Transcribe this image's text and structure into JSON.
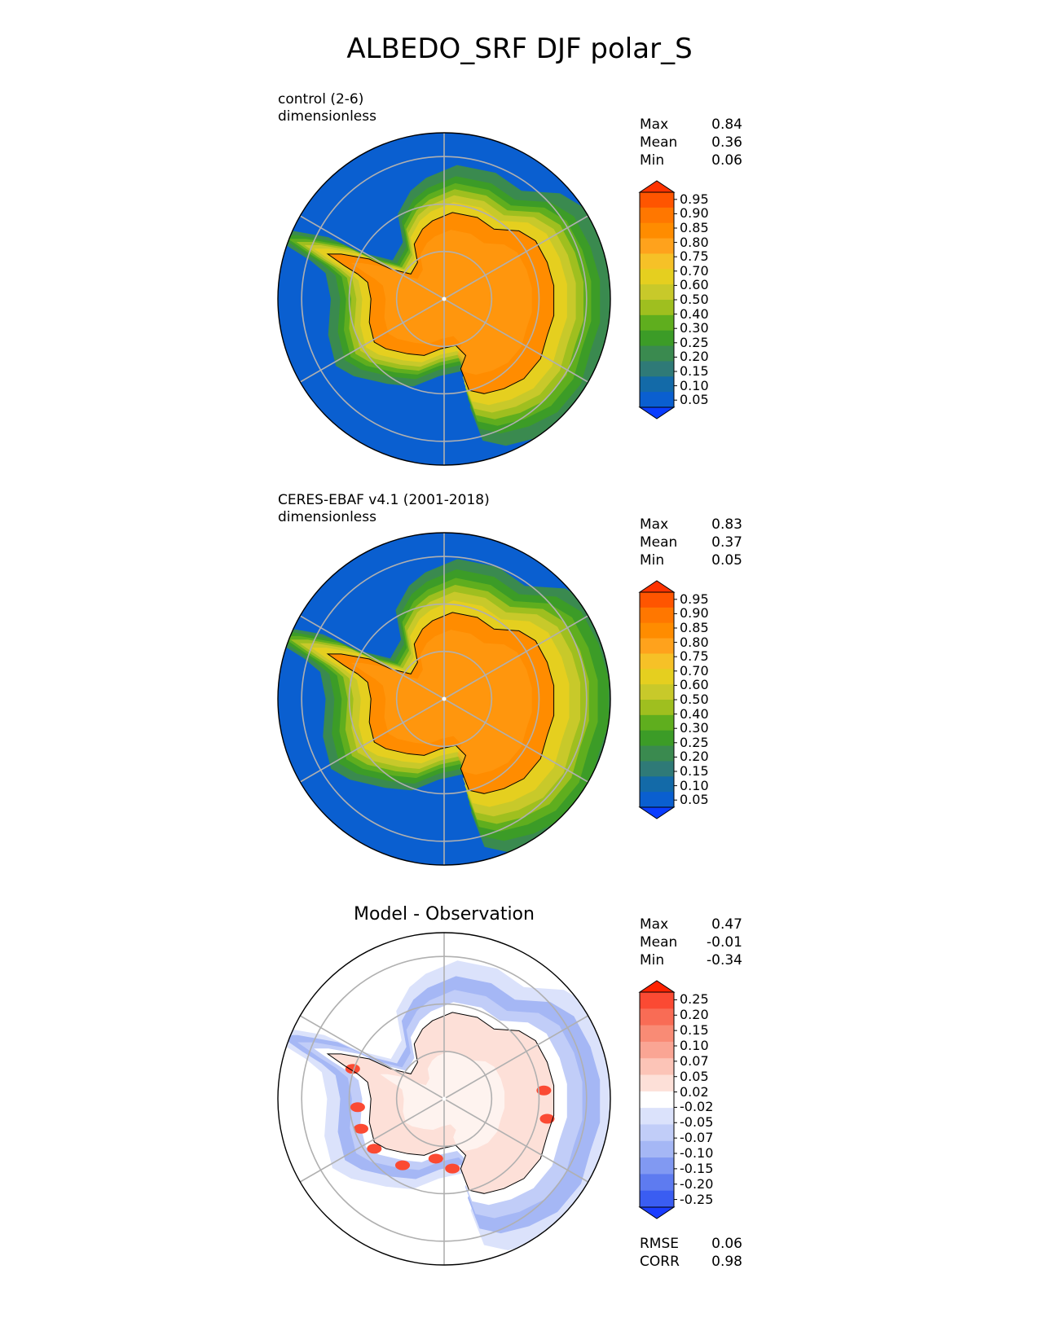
{
  "figure": {
    "title": "ALBEDO_SRF DJF polar_S"
  },
  "chart_data": [
    {
      "type": "heatmap",
      "projection": "south-polar-stereographic",
      "title": "control (2-6)",
      "units": "dimensionless",
      "stats": [
        {
          "label": "Max",
          "value": "0.84"
        },
        {
          "label": "Mean",
          "value": "0.36"
        },
        {
          "label": "Min",
          "value": "0.06"
        }
      ],
      "colorbar": {
        "levels": [
          "0.95",
          "0.90",
          "0.85",
          "0.80",
          "0.75",
          "0.70",
          "0.60",
          "0.50",
          "0.40",
          "0.30",
          "0.25",
          "0.20",
          "0.15",
          "0.10",
          "0.05"
        ],
        "colors": [
          "#ff3300",
          "#ff5500",
          "#ff7700",
          "#ff8c00",
          "#ffa21c",
          "#f6c127",
          "#e5cf1f",
          "#c8c92a",
          "#9fbf1f",
          "#5fae1e",
          "#3c9c27",
          "#3a8a4f",
          "#2f7a77",
          "#136aa8",
          "#0a5fd0",
          "#0a3dff"
        ],
        "extend": "both"
      },
      "grid": true
    },
    {
      "type": "heatmap",
      "projection": "south-polar-stereographic",
      "title": "CERES-EBAF v4.1 (2001-2018)",
      "units": "dimensionless",
      "stats": [
        {
          "label": "Max",
          "value": "0.83"
        },
        {
          "label": "Mean",
          "value": "0.37"
        },
        {
          "label": "Min",
          "value": "0.05"
        }
      ],
      "colorbar": {
        "levels": [
          "0.95",
          "0.90",
          "0.85",
          "0.80",
          "0.75",
          "0.70",
          "0.60",
          "0.50",
          "0.40",
          "0.30",
          "0.25",
          "0.20",
          "0.15",
          "0.10",
          "0.05"
        ],
        "colors": [
          "#ff3300",
          "#ff5500",
          "#ff7700",
          "#ff8c00",
          "#ffa21c",
          "#f6c127",
          "#e5cf1f",
          "#c8c92a",
          "#9fbf1f",
          "#5fae1e",
          "#3c9c27",
          "#3a8a4f",
          "#2f7a77",
          "#136aa8",
          "#0a5fd0",
          "#0a3dff"
        ],
        "extend": "both"
      },
      "grid": true
    },
    {
      "type": "heatmap",
      "projection": "south-polar-stereographic",
      "title": "Model - Observation",
      "units": "",
      "stats": [
        {
          "label": "Max",
          "value": "0.47"
        },
        {
          "label": "Mean",
          "value": "-0.01"
        },
        {
          "label": "Min",
          "value": "-0.34"
        }
      ],
      "metrics": [
        {
          "label": "RMSE",
          "value": "0.06"
        },
        {
          "label": "CORR",
          "value": "0.98"
        }
      ],
      "colorbar": {
        "levels": [
          "0.25",
          "0.20",
          "0.15",
          "0.10",
          "0.07",
          "0.05",
          "0.02",
          "-0.02",
          "-0.05",
          "-0.07",
          "-0.10",
          "-0.15",
          "-0.20",
          "-0.25"
        ],
        "colors": [
          "#ff2200",
          "#fb4a33",
          "#f96c55",
          "#f98b75",
          "#faa594",
          "#fcc4b7",
          "#fde0d8",
          "#ffffff",
          "#dbe2fb",
          "#c1cdf8",
          "#a5b7f5",
          "#8199f2",
          "#5e7bf0",
          "#3a5df2",
          "#1a3dff"
        ],
        "extend": "both"
      },
      "grid": true
    }
  ]
}
